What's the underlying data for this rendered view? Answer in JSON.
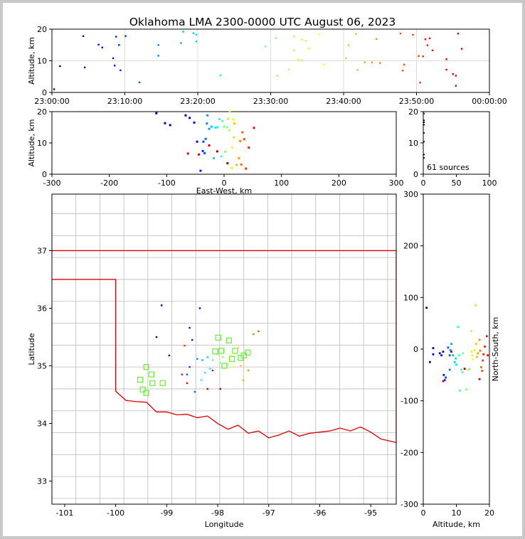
{
  "title": "Oklahoma LMA 2300-0000 UTC August 06, 2023",
  "colors": {
    "state_border": "#dd0000",
    "county_lines": "#bbbbbb",
    "station": "#66ee33",
    "axes": "#000000"
  },
  "chart_data": [
    {
      "type": "scatter",
      "panel": "time-altitude",
      "ylabel": "Altitude, km",
      "x_ticks": [
        "23:00:00",
        "23:10:00",
        "23:20:00",
        "23:30:00",
        "23:40:00",
        "23:50:00",
        "00:00:00"
      ],
      "xlim_minutes": [
        0,
        60
      ],
      "ylim": [
        0,
        20
      ],
      "y_ticks": [
        0,
        10,
        20
      ],
      "grid": true,
      "points_minutes_km": [
        [
          0.3,
          1
        ],
        [
          1.1,
          8.3
        ],
        [
          4.3,
          17.8
        ],
        [
          4.5,
          7.9
        ],
        [
          6.4,
          15.1
        ],
        [
          6.9,
          14.2
        ],
        [
          8.4,
          10.8
        ],
        [
          8.6,
          8.5
        ],
        [
          8.8,
          17.6
        ],
        [
          9.2,
          15
        ],
        [
          9.4,
          7
        ],
        [
          10.1,
          17.8
        ],
        [
          12,
          3.2
        ],
        [
          14.6,
          15
        ],
        [
          14.6,
          11.6
        ],
        [
          17.7,
          15.6
        ],
        [
          18,
          19.2
        ],
        [
          19.4,
          18.7
        ],
        [
          19.8,
          18.3
        ],
        [
          19.8,
          16.1
        ],
        [
          23.1,
          5.4
        ],
        [
          29.3,
          14.5
        ],
        [
          30.7,
          17.2
        ],
        [
          30.9,
          5.3
        ],
        [
          32.5,
          7.3
        ],
        [
          33.2,
          17.7
        ],
        [
          33.2,
          13.3
        ],
        [
          33.8,
          10.4
        ],
        [
          34.3,
          10.2
        ],
        [
          34.3,
          16.7
        ],
        [
          34.8,
          16.3
        ],
        [
          35.2,
          13.9
        ],
        [
          36.6,
          18.3
        ],
        [
          37.3,
          8.8
        ],
        [
          40.3,
          10.8
        ],
        [
          40.7,
          14.9
        ],
        [
          41.7,
          18.5
        ],
        [
          41.9,
          7.1
        ],
        [
          42.9,
          9.5
        ],
        [
          43.9,
          9.5
        ],
        [
          44.5,
          16.9
        ],
        [
          45,
          9.3
        ],
        [
          47.8,
          18.6
        ],
        [
          48.1,
          6.9
        ],
        [
          48.3,
          8.8
        ],
        [
          49.5,
          18.2
        ],
        [
          50.3,
          11.5
        ],
        [
          50.5,
          3.1
        ],
        [
          50.9,
          11.4
        ],
        [
          51.2,
          16.8
        ],
        [
          51.5,
          14.9
        ],
        [
          51.8,
          17.1
        ],
        [
          52.2,
          13.3
        ],
        [
          54.1,
          7.2
        ],
        [
          54.1,
          10.5
        ],
        [
          55,
          5.8
        ],
        [
          55.4,
          5.3
        ],
        [
          55.4,
          2.1
        ],
        [
          55.7,
          18.6
        ],
        [
          56.2,
          13.8
        ]
      ]
    },
    {
      "type": "scatter",
      "panel": "east-west-altitude",
      "xlabel": "East-West, km",
      "ylabel": "Altitude, km",
      "xlim": [
        -300,
        300
      ],
      "ylim": [
        0,
        20
      ],
      "x_ticks": [
        -300,
        -200,
        -100,
        0,
        100,
        200,
        300
      ],
      "y_ticks": [
        0,
        10,
        20
      ],
      "points": [
        [
          -118,
          19.5
        ],
        [
          -103,
          16.3
        ],
        [
          -94,
          15.7
        ],
        [
          -67,
          18.8
        ],
        [
          -60,
          18
        ],
        [
          -52,
          16.5
        ],
        [
          -47,
          10.4
        ],
        [
          -41,
          1.1
        ],
        [
          -37,
          7.4
        ],
        [
          -36,
          10.4
        ],
        [
          -34,
          6.7
        ],
        [
          -32,
          11.3
        ],
        [
          -30,
          16.2
        ],
        [
          -29,
          18.8
        ],
        [
          -26,
          14.5
        ],
        [
          -22,
          15.2
        ],
        [
          -18,
          5.1
        ],
        [
          -15,
          14.9
        ],
        [
          -12,
          15
        ],
        [
          -8,
          17.6
        ],
        [
          -5,
          5.7
        ],
        [
          -3,
          17
        ],
        [
          0,
          15.2
        ],
        [
          2,
          7.2
        ],
        [
          5,
          15
        ],
        [
          7,
          17.7
        ],
        [
          9,
          14.1
        ],
        [
          10,
          20
        ],
        [
          13,
          2
        ],
        [
          14,
          8.5
        ],
        [
          16,
          17.5
        ],
        [
          17,
          11.8
        ],
        [
          18,
          16.2
        ],
        [
          22,
          3
        ],
        [
          26,
          5.1
        ],
        [
          28,
          10.6
        ],
        [
          30,
          3.1
        ],
        [
          32,
          13.4
        ],
        [
          35,
          11.2
        ],
        [
          38,
          1.8
        ],
        [
          43,
          8.5
        ],
        [
          52,
          14.8
        ],
        [
          -63,
          6.6
        ],
        [
          -44,
          6.3
        ],
        [
          -26,
          9.2
        ],
        [
          -12,
          7.3
        ],
        [
          6,
          3.5
        ]
      ]
    },
    {
      "type": "histogram",
      "panel": "source-count-altitude",
      "xlim": [
        0,
        100
      ],
      "ylim": [
        0,
        20
      ],
      "x_ticks": [
        0,
        50,
        100
      ],
      "y_ticks": [
        0,
        10,
        20
      ],
      "annotation": "61 sources",
      "points": [
        [
          1,
          19.4
        ],
        [
          1,
          17.2
        ],
        [
          1,
          16.6
        ],
        [
          1,
          15.8
        ],
        [
          1,
          13.2
        ],
        [
          1,
          10.4
        ],
        [
          1,
          6.3
        ],
        [
          1,
          5.2
        ]
      ]
    },
    {
      "type": "scatter",
      "panel": "plan-view-map",
      "xlabel": "Longitude",
      "ylabel": "Latitude",
      "xlim": [
        -101.25,
        -94.5
      ],
      "ylim": [
        32.6,
        37.98
      ],
      "x_ticks": [
        -101,
        -100,
        -99,
        -98,
        -97,
        -96,
        -95
      ],
      "y_ticks": [
        33,
        34,
        35,
        36,
        37
      ],
      "stations": [
        [
          -97.99,
          35.49
        ],
        [
          -97.78,
          35.44
        ],
        [
          -97.41,
          35.23
        ],
        [
          -97.49,
          35.18
        ],
        [
          -97.55,
          35.14
        ],
        [
          -98.05,
          35.25
        ],
        [
          -97.93,
          35.26
        ],
        [
          -97.72,
          35.12
        ],
        [
          -97.66,
          35.26
        ],
        [
          -97.87,
          35.0
        ],
        [
          -99.4,
          34.98
        ],
        [
          -99.3,
          34.85
        ],
        [
          -99.52,
          34.76
        ],
        [
          -99.28,
          34.7
        ],
        [
          -99.08,
          34.7
        ],
        [
          -99.47,
          34.59
        ],
        [
          -99.4,
          34.53
        ]
      ],
      "points": [
        [
          -99.1,
          36.05
        ],
        [
          -99.2,
          35.5
        ],
        [
          -98.95,
          35.18
        ],
        [
          -98.55,
          35.66
        ],
        [
          -98.35,
          36.0
        ],
        [
          -98.5,
          35.45
        ],
        [
          -98.55,
          34.98
        ],
        [
          -98.6,
          34.85
        ],
        [
          -98.45,
          34.55
        ],
        [
          -98.4,
          35.12
        ],
        [
          -98.3,
          35.1
        ],
        [
          -98.2,
          35.15
        ],
        [
          -98.15,
          34.95
        ],
        [
          -98.25,
          34.88
        ],
        [
          -98.32,
          34.75
        ],
        [
          -98.1,
          35.1
        ],
        [
          -98.0,
          35.2
        ],
        [
          -97.95,
          35.05
        ],
        [
          -97.9,
          35.15
        ],
        [
          -97.8,
          35.02
        ],
        [
          -97.75,
          35.18
        ],
        [
          -97.68,
          34.98
        ],
        [
          -97.6,
          35.32
        ],
        [
          -97.55,
          35.0
        ],
        [
          -97.5,
          34.75
        ],
        [
          -97.4,
          34.92
        ],
        [
          -97.3,
          35.55
        ],
        [
          -97.2,
          35.6
        ],
        [
          -98.65,
          35.35
        ],
        [
          -98.7,
          34.85
        ],
        [
          -98.6,
          34.7
        ],
        [
          -98.1,
          34.92
        ],
        [
          -98.2,
          34.6
        ],
        [
          -97.95,
          34.6
        ]
      ]
    },
    {
      "type": "scatter",
      "panel": "altitude-north-south",
      "xlabel": "Altitude, km",
      "ylabel": "North-South, km",
      "xlim": [
        0,
        20
      ],
      "ylim": [
        -300,
        300
      ],
      "x_ticks": [
        0,
        10,
        20
      ],
      "y_ticks": [
        -300,
        -200,
        -100,
        0,
        100,
        200,
        300
      ],
      "points": [
        [
          1,
          80
        ],
        [
          2,
          -25
        ],
        [
          3,
          2
        ],
        [
          3,
          -10
        ],
        [
          5,
          -8
        ],
        [
          5.5,
          -12
        ],
        [
          6,
          -5
        ],
        [
          6.2,
          -50
        ],
        [
          6.5,
          -60
        ],
        [
          6.8,
          -55
        ],
        [
          7.5,
          3
        ],
        [
          8,
          -12
        ],
        [
          8,
          -40
        ],
        [
          8.2,
          -2
        ],
        [
          8.5,
          10
        ],
        [
          9,
          -12
        ],
        [
          9.5,
          -25
        ],
        [
          9.8,
          -18
        ],
        [
          10,
          -30
        ],
        [
          10.5,
          43
        ],
        [
          10.8,
          -12
        ],
        [
          11,
          -80
        ],
        [
          11.5,
          -40
        ],
        [
          11.8,
          -45
        ],
        [
          12,
          -8
        ],
        [
          13,
          -78
        ],
        [
          13.5,
          -40
        ],
        [
          14,
          -38
        ],
        [
          14.5,
          35
        ],
        [
          14.6,
          -5
        ],
        [
          14.8,
          -12
        ],
        [
          15,
          -20
        ],
        [
          15.5,
          -2
        ],
        [
          15.8,
          85
        ],
        [
          16,
          10
        ],
        [
          16.2,
          -15
        ],
        [
          16.5,
          -8
        ],
        [
          17,
          18
        ],
        [
          17.2,
          -3
        ],
        [
          17.5,
          -35
        ],
        [
          17.8,
          -42
        ],
        [
          18,
          -22
        ],
        [
          18.2,
          -10
        ],
        [
          18.6,
          5
        ],
        [
          19.2,
          25
        ],
        [
          19.5,
          -12
        ],
        [
          17,
          -58
        ],
        [
          6,
          -62
        ],
        [
          12.5,
          -38
        ],
        [
          8.5,
          -5
        ]
      ]
    }
  ]
}
